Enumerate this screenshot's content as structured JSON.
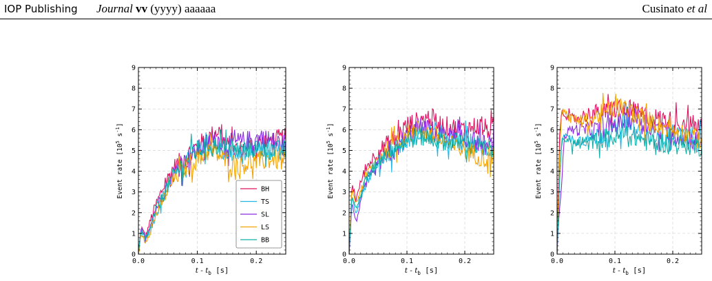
{
  "header": {
    "publisher": "IOP Publishing",
    "journal_name": "Journal",
    "journal_volume": "vv",
    "journal_rest": "(yyyy) aaaaaa",
    "author": "Cusinato",
    "et_al": "et al"
  },
  "colors": {
    "BH": "#e0105e",
    "TS": "#1fb6e6",
    "SL": "#8b2be2",
    "LS": "#f5a300",
    "BB": "#12b0a8",
    "grid": "#d9d9d9"
  },
  "chart_data": [
    {
      "type": "line",
      "xlim": [
        0.0,
        0.25
      ],
      "ylim": [
        0,
        9
      ],
      "xticks": [
        "0.0",
        "0.1",
        "0.2"
      ],
      "yticks": [
        "0",
        "1",
        "2",
        "3",
        "4",
        "5",
        "6",
        "7",
        "8",
        "9"
      ],
      "xlabel": {
        "main": "t - t",
        "sub": "b",
        "unit": " [s]"
      },
      "ylabel": {
        "main": "Event rate [10",
        "sup1": "5",
        "mid": " s",
        "sup2": "-1",
        "end": "]"
      },
      "grid": true,
      "legend": {
        "position": "bottom-right",
        "entries": [
          "BH",
          "TS",
          "SL",
          "LS",
          "BB"
        ]
      },
      "series": [
        {
          "name": "BH",
          "x": [
            0,
            0.005,
            0.012,
            0.02,
            0.03,
            0.045,
            0.06,
            0.08,
            0.1,
            0.12,
            0.135,
            0.15,
            0.17,
            0.19,
            0.21,
            0.23,
            0.25
          ],
          "y": [
            0,
            1.3,
            0.8,
            1.6,
            2.4,
            3.4,
            4.2,
            4.7,
            5.2,
            5.6,
            6.0,
            5.2,
            5.0,
            5.2,
            5.4,
            5.5,
            5.6
          ]
        },
        {
          "name": "TS",
          "x": [
            0,
            0.005,
            0.012,
            0.02,
            0.03,
            0.045,
            0.06,
            0.08,
            0.1,
            0.12,
            0.135,
            0.15,
            0.17,
            0.19,
            0.21,
            0.23,
            0.25
          ],
          "y": [
            0,
            1.1,
            0.7,
            1.2,
            2.0,
            3.0,
            3.8,
            4.4,
            4.9,
            5.2,
            5.1,
            4.9,
            4.8,
            4.9,
            5.0,
            4.9,
            5.0
          ]
        },
        {
          "name": "SL",
          "x": [
            0,
            0.005,
            0.012,
            0.02,
            0.03,
            0.045,
            0.06,
            0.08,
            0.1,
            0.12,
            0.135,
            0.15,
            0.17,
            0.19,
            0.21,
            0.23,
            0.25
          ],
          "y": [
            0,
            1.2,
            0.7,
            1.4,
            2.2,
            3.1,
            3.9,
            4.5,
            5.0,
            5.4,
            5.5,
            5.3,
            5.4,
            5.5,
            5.6,
            5.4,
            5.3
          ]
        },
        {
          "name": "LS",
          "x": [
            0,
            0.005,
            0.012,
            0.02,
            0.03,
            0.045,
            0.06,
            0.08,
            0.1,
            0.12,
            0.135,
            0.15,
            0.17,
            0.19,
            0.21,
            0.23,
            0.25
          ],
          "y": [
            0,
            1.0,
            0.6,
            1.1,
            1.9,
            2.8,
            3.6,
            4.2,
            4.6,
            5.0,
            4.8,
            4.5,
            4.3,
            4.4,
            4.5,
            4.6,
            4.4
          ]
        },
        {
          "name": "BB",
          "x": [
            0,
            0.005,
            0.012,
            0.02,
            0.03,
            0.045,
            0.06,
            0.08,
            0.1,
            0.12,
            0.135,
            0.15,
            0.17,
            0.19,
            0.21,
            0.23,
            0.25
          ],
          "y": [
            0,
            1.1,
            0.7,
            1.3,
            2.1,
            3.0,
            3.8,
            4.5,
            5.0,
            5.3,
            5.2,
            5.0,
            5.0,
            5.1,
            5.1,
            5.0,
            5.0
          ]
        }
      ]
    },
    {
      "type": "line",
      "xlim": [
        0.0,
        0.25
      ],
      "ylim": [
        0,
        9
      ],
      "xticks": [
        "0.0",
        "0.1",
        "0.2"
      ],
      "yticks": [
        "0",
        "1",
        "2",
        "3",
        "4",
        "5",
        "6",
        "7",
        "8",
        "9"
      ],
      "xlabel": {
        "main": "t - t",
        "sub": "b",
        "unit": " [s]"
      },
      "ylabel": {
        "main": "Event rate [10",
        "sup1": "5",
        "mid": " s",
        "sup2": "-1",
        "end": "]"
      },
      "grid": true,
      "series": [
        {
          "name": "BH",
          "x": [
            0,
            0.005,
            0.012,
            0.02,
            0.03,
            0.045,
            0.06,
            0.08,
            0.1,
            0.12,
            0.14,
            0.16,
            0.18,
            0.2,
            0.22,
            0.24,
            0.25
          ],
          "y": [
            0,
            3.4,
            2.6,
            3.5,
            4.2,
            4.8,
            5.2,
            5.6,
            6.2,
            6.4,
            6.6,
            6.2,
            6.1,
            6.0,
            6.2,
            6.0,
            5.9
          ]
        },
        {
          "name": "TS",
          "x": [
            0,
            0.005,
            0.012,
            0.02,
            0.03,
            0.045,
            0.06,
            0.08,
            0.1,
            0.12,
            0.14,
            0.16,
            0.18,
            0.2,
            0.22,
            0.24,
            0.25
          ],
          "y": [
            0,
            2.8,
            2.0,
            2.8,
            3.5,
            4.2,
            4.7,
            5.1,
            5.5,
            5.9,
            5.8,
            5.6,
            5.4,
            5.4,
            5.3,
            5.0,
            5.2
          ]
        },
        {
          "name": "SL",
          "x": [
            0,
            0.005,
            0.012,
            0.02,
            0.03,
            0.045,
            0.06,
            0.08,
            0.1,
            0.12,
            0.14,
            0.16,
            0.18,
            0.2,
            0.22,
            0.24,
            0.25
          ],
          "y": [
            0,
            2.5,
            1.5,
            2.6,
            3.4,
            4.1,
            4.6,
            5.0,
            5.7,
            6.1,
            6.0,
            5.7,
            5.6,
            5.5,
            5.4,
            5.2,
            5.3
          ]
        },
        {
          "name": "LS",
          "x": [
            0,
            0.005,
            0.012,
            0.02,
            0.03,
            0.045,
            0.06,
            0.08,
            0.1,
            0.12,
            0.14,
            0.16,
            0.18,
            0.2,
            0.22,
            0.24,
            0.25
          ],
          "y": [
            0,
            3.2,
            2.4,
            3.1,
            3.8,
            4.4,
            4.9,
            5.3,
            5.8,
            6.0,
            5.8,
            5.5,
            5.2,
            5.0,
            4.8,
            4.6,
            4.8
          ]
        },
        {
          "name": "BB",
          "x": [
            0,
            0.005,
            0.012,
            0.02,
            0.03,
            0.045,
            0.06,
            0.08,
            0.1,
            0.12,
            0.14,
            0.16,
            0.18,
            0.2,
            0.22,
            0.24,
            0.25
          ],
          "y": [
            0,
            2.9,
            2.1,
            2.9,
            3.6,
            4.3,
            4.8,
            5.2,
            5.5,
            5.7,
            5.6,
            5.5,
            5.4,
            5.3,
            5.2,
            5.0,
            5.1
          ]
        }
      ]
    },
    {
      "type": "line",
      "xlim": [
        0.0,
        0.25
      ],
      "ylim": [
        0,
        9
      ],
      "xticks": [
        "0.0",
        "0.1",
        "0.2"
      ],
      "yticks": [
        "0",
        "1",
        "2",
        "3",
        "4",
        "5",
        "6",
        "7",
        "8",
        "9"
      ],
      "xlabel": {
        "main": "t - t",
        "sub": "b",
        "unit": " [s]"
      },
      "ylabel": {
        "main": "Event rate [10",
        "sup1": "5",
        "mid": " s",
        "sup2": "-1",
        "end": "]"
      },
      "grid": true,
      "series": [
        {
          "name": "BH",
          "x": [
            0,
            0.004,
            0.008,
            0.012,
            0.02,
            0.04,
            0.06,
            0.08,
            0.1,
            0.12,
            0.14,
            0.16,
            0.18,
            0.2,
            0.22,
            0.24,
            0.25
          ],
          "y": [
            0,
            5.5,
            7.0,
            6.8,
            6.5,
            6.6,
            6.8,
            6.8,
            7.0,
            7.0,
            6.8,
            6.6,
            6.5,
            6.4,
            6.3,
            6.2,
            6.1
          ]
        },
        {
          "name": "TS",
          "x": [
            0,
            0.004,
            0.008,
            0.012,
            0.02,
            0.04,
            0.06,
            0.08,
            0.1,
            0.12,
            0.14,
            0.16,
            0.18,
            0.2,
            0.22,
            0.24,
            0.25
          ],
          "y": [
            0,
            3.5,
            5.6,
            5.8,
            5.6,
            5.5,
            5.6,
            5.8,
            6.0,
            6.2,
            5.9,
            5.7,
            5.6,
            5.8,
            5.7,
            5.5,
            5.6
          ]
        },
        {
          "name": "SL",
          "x": [
            0,
            0.004,
            0.008,
            0.012,
            0.02,
            0.04,
            0.06,
            0.08,
            0.1,
            0.12,
            0.14,
            0.16,
            0.18,
            0.2,
            0.22,
            0.24,
            0.25
          ],
          "y": [
            0,
            2.2,
            3.4,
            5.5,
            6.0,
            6.0,
            6.0,
            6.0,
            6.2,
            6.5,
            6.6,
            6.2,
            5.9,
            5.8,
            5.6,
            5.5,
            5.4
          ]
        },
        {
          "name": "LS",
          "x": [
            0,
            0.004,
            0.008,
            0.012,
            0.02,
            0.04,
            0.06,
            0.08,
            0.1,
            0.12,
            0.14,
            0.16,
            0.18,
            0.2,
            0.22,
            0.24,
            0.25
          ],
          "y": [
            0,
            4.5,
            6.8,
            7.0,
            6.6,
            6.4,
            6.5,
            6.8,
            7.1,
            7.0,
            6.7,
            6.4,
            6.2,
            6.0,
            5.8,
            5.6,
            5.5
          ]
        },
        {
          "name": "BB",
          "x": [
            0,
            0.004,
            0.008,
            0.012,
            0.02,
            0.04,
            0.06,
            0.08,
            0.1,
            0.12,
            0.14,
            0.16,
            0.18,
            0.2,
            0.22,
            0.24,
            0.25
          ],
          "y": [
            0,
            3.2,
            5.4,
            5.6,
            5.4,
            5.3,
            5.4,
            5.6,
            5.6,
            5.8,
            5.6,
            5.4,
            5.4,
            5.3,
            5.3,
            5.2,
            5.2
          ]
        }
      ]
    }
  ]
}
